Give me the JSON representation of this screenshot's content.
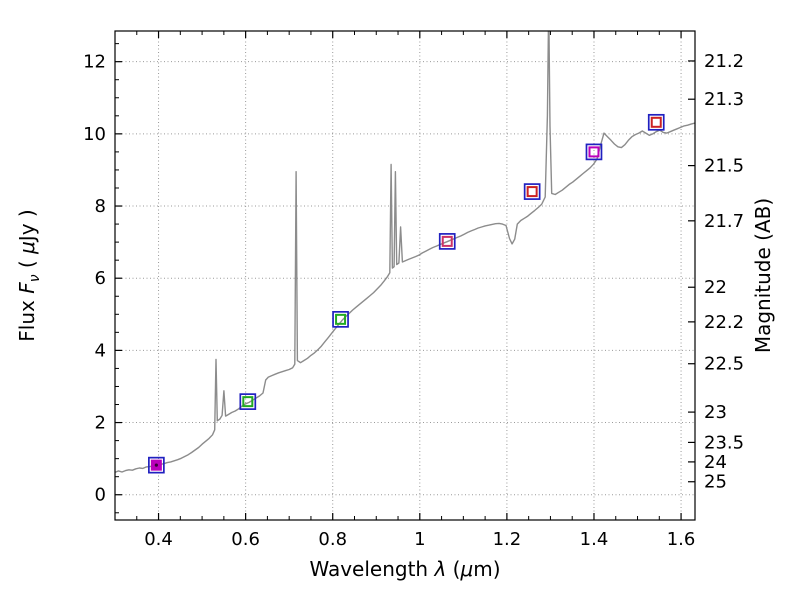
{
  "chart_data": {
    "type": "line",
    "title": "",
    "xlabel_parts": [
      {
        "text": "Wavelength  "
      },
      {
        "text": "λ",
        "italic": true
      },
      {
        "text": " ("
      },
      {
        "text": "μ",
        "italic": true
      },
      {
        "text": "m)"
      }
    ],
    "ylabel_left_parts": [
      {
        "text": "Flux  "
      },
      {
        "text": "F",
        "italic": true
      },
      {
        "text": "ν",
        "italic": true,
        "sub": true
      },
      {
        "text": "  ( "
      },
      {
        "text": "μ",
        "italic": true
      },
      {
        "text": "Jy )"
      }
    ],
    "ylabel_right": "Magnitude (AB)",
    "xlim": [
      0.3,
      1.632
    ],
    "ylim_flux": [
      -0.7,
      12.85
    ],
    "x_major_ticks": [
      0.4,
      0.6,
      0.8,
      1.0,
      1.2,
      1.4,
      1.6
    ],
    "x_tick_labels": [
      "0.4",
      "0.6",
      "0.8",
      "1",
      "1.2",
      "1.4",
      "1.6"
    ],
    "x_minor_step": 0.05,
    "y_major_ticks": [
      0,
      2,
      4,
      6,
      8,
      10,
      12
    ],
    "y_tick_labels": [
      "0",
      "2",
      "4",
      "6",
      "8",
      "10",
      "12"
    ],
    "y_minor_step": 0.5,
    "grid": true,
    "legend": "none",
    "mag_ticks": [
      {
        "label": "21.2",
        "flux": 12.02
      },
      {
        "label": "21.3",
        "flux": 10.96
      },
      {
        "label": "21.5",
        "flux": 9.12
      },
      {
        "label": "21.7",
        "flux": 7.59
      },
      {
        "label": "22",
        "flux": 5.75
      },
      {
        "label": "22.2",
        "flux": 4.79
      },
      {
        "label": "22.5",
        "flux": 3.63
      },
      {
        "label": "23",
        "flux": 2.29
      },
      {
        "label": "23.5",
        "flux": 1.45
      },
      {
        "label": "24",
        "flux": 0.91
      },
      {
        "label": "25",
        "flux": 0.36
      }
    ],
    "colors": {
      "spectrum": "#8c8c8c",
      "grid": "#9a9a9a",
      "frame": "#000000",
      "square_outer": "#2020c0"
    },
    "spectrum_points": [
      [
        0.3,
        0.62
      ],
      [
        0.308,
        0.66
      ],
      [
        0.316,
        0.63
      ],
      [
        0.324,
        0.67
      ],
      [
        0.332,
        0.69
      ],
      [
        0.34,
        0.68
      ],
      [
        0.348,
        0.72
      ],
      [
        0.356,
        0.74
      ],
      [
        0.364,
        0.73
      ],
      [
        0.372,
        0.77
      ],
      [
        0.38,
        0.78
      ],
      [
        0.388,
        0.8
      ],
      [
        0.396,
        0.82
      ],
      [
        0.404,
        0.84
      ],
      [
        0.412,
        0.86
      ],
      [
        0.42,
        0.89
      ],
      [
        0.428,
        0.91
      ],
      [
        0.436,
        0.94
      ],
      [
        0.444,
        0.97
      ],
      [
        0.452,
        1.01
      ],
      [
        0.46,
        1.06
      ],
      [
        0.468,
        1.11
      ],
      [
        0.476,
        1.17
      ],
      [
        0.484,
        1.24
      ],
      [
        0.492,
        1.31
      ],
      [
        0.5,
        1.4
      ],
      [
        0.508,
        1.48
      ],
      [
        0.516,
        1.56
      ],
      [
        0.524,
        1.66
      ],
      [
        0.529,
        1.8
      ],
      [
        0.532,
        3.75
      ],
      [
        0.535,
        2.05
      ],
      [
        0.541,
        2.1
      ],
      [
        0.546,
        2.2
      ],
      [
        0.55,
        2.88
      ],
      [
        0.554,
        2.18
      ],
      [
        0.56,
        2.22
      ],
      [
        0.568,
        2.28
      ],
      [
        0.576,
        2.32
      ],
      [
        0.584,
        2.38
      ],
      [
        0.592,
        2.46
      ],
      [
        0.6,
        2.52
      ],
      [
        0.608,
        2.56
      ],
      [
        0.616,
        2.62
      ],
      [
        0.624,
        2.68
      ],
      [
        0.632,
        2.74
      ],
      [
        0.64,
        2.82
      ],
      [
        0.646,
        3.18
      ],
      [
        0.652,
        3.26
      ],
      [
        0.66,
        3.3
      ],
      [
        0.668,
        3.34
      ],
      [
        0.676,
        3.38
      ],
      [
        0.684,
        3.41
      ],
      [
        0.692,
        3.44
      ],
      [
        0.7,
        3.47
      ],
      [
        0.708,
        3.52
      ],
      [
        0.713,
        3.62
      ],
      [
        0.716,
        8.95
      ],
      [
        0.719,
        3.72
      ],
      [
        0.726,
        3.66
      ],
      [
        0.734,
        3.72
      ],
      [
        0.742,
        3.78
      ],
      [
        0.75,
        3.86
      ],
      [
        0.758,
        3.93
      ],
      [
        0.766,
        4.02
      ],
      [
        0.774,
        4.12
      ],
      [
        0.782,
        4.24
      ],
      [
        0.79,
        4.36
      ],
      [
        0.798,
        4.48
      ],
      [
        0.806,
        4.6
      ],
      [
        0.814,
        4.72
      ],
      [
        0.822,
        4.84
      ],
      [
        0.83,
        4.94
      ],
      [
        0.838,
        5.03
      ],
      [
        0.846,
        5.12
      ],
      [
        0.854,
        5.2
      ],
      [
        0.862,
        5.28
      ],
      [
        0.87,
        5.36
      ],
      [
        0.878,
        5.44
      ],
      [
        0.886,
        5.52
      ],
      [
        0.894,
        5.6
      ],
      [
        0.902,
        5.7
      ],
      [
        0.91,
        5.8
      ],
      [
        0.918,
        5.92
      ],
      [
        0.926,
        6.05
      ],
      [
        0.931,
        6.15
      ],
      [
        0.934,
        9.15
      ],
      [
        0.937,
        6.28
      ],
      [
        0.941,
        6.32
      ],
      [
        0.944,
        8.95
      ],
      [
        0.947,
        6.38
      ],
      [
        0.952,
        6.42
      ],
      [
        0.956,
        7.42
      ],
      [
        0.96,
        6.45
      ],
      [
        0.966,
        6.48
      ],
      [
        0.974,
        6.52
      ],
      [
        0.982,
        6.56
      ],
      [
        0.99,
        6.6
      ],
      [
        0.998,
        6.64
      ],
      [
        1.006,
        6.7
      ],
      [
        1.014,
        6.75
      ],
      [
        1.022,
        6.8
      ],
      [
        1.03,
        6.85
      ],
      [
        1.038,
        6.89
      ],
      [
        1.046,
        6.93
      ],
      [
        1.054,
        6.97
      ],
      [
        1.062,
        7.01
      ],
      [
        1.07,
        7.05
      ],
      [
        1.078,
        7.09
      ],
      [
        1.086,
        7.13
      ],
      [
        1.094,
        7.17
      ],
      [
        1.102,
        7.22
      ],
      [
        1.11,
        7.27
      ],
      [
        1.118,
        7.31
      ],
      [
        1.126,
        7.35
      ],
      [
        1.134,
        7.39
      ],
      [
        1.142,
        7.42
      ],
      [
        1.15,
        7.45
      ],
      [
        1.158,
        7.47
      ],
      [
        1.166,
        7.49
      ],
      [
        1.174,
        7.51
      ],
      [
        1.182,
        7.52
      ],
      [
        1.19,
        7.5
      ],
      [
        1.198,
        7.46
      ],
      [
        1.206,
        7.1
      ],
      [
        1.212,
        6.95
      ],
      [
        1.218,
        7.08
      ],
      [
        1.224,
        7.5
      ],
      [
        1.232,
        7.6
      ],
      [
        1.24,
        7.66
      ],
      [
        1.248,
        7.72
      ],
      [
        1.256,
        7.8
      ],
      [
        1.264,
        7.88
      ],
      [
        1.272,
        7.96
      ],
      [
        1.28,
        8.05
      ],
      [
        1.288,
        8.25
      ],
      [
        1.293,
        10.5
      ],
      [
        1.296,
        13.6
      ],
      [
        1.299,
        10.2
      ],
      [
        1.303,
        8.35
      ],
      [
        1.311,
        8.32
      ],
      [
        1.319,
        8.38
      ],
      [
        1.327,
        8.44
      ],
      [
        1.335,
        8.52
      ],
      [
        1.343,
        8.6
      ],
      [
        1.351,
        8.66
      ],
      [
        1.359,
        8.74
      ],
      [
        1.367,
        8.82
      ],
      [
        1.375,
        8.9
      ],
      [
        1.383,
        8.98
      ],
      [
        1.391,
        9.06
      ],
      [
        1.399,
        9.16
      ],
      [
        1.407,
        9.3
      ],
      [
        1.415,
        9.68
      ],
      [
        1.423,
        10.02
      ],
      [
        1.431,
        9.92
      ],
      [
        1.439,
        9.82
      ],
      [
        1.447,
        9.72
      ],
      [
        1.455,
        9.64
      ],
      [
        1.463,
        9.62
      ],
      [
        1.471,
        9.7
      ],
      [
        1.479,
        9.82
      ],
      [
        1.487,
        9.92
      ],
      [
        1.495,
        9.98
      ],
      [
        1.503,
        10.02
      ],
      [
        1.511,
        10.08
      ],
      [
        1.519,
        10.02
      ],
      [
        1.527,
        9.96
      ],
      [
        1.535,
        10.0
      ],
      [
        1.543,
        10.06
      ],
      [
        1.551,
        10.1
      ],
      [
        1.559,
        10.04
      ],
      [
        1.567,
        10.02
      ],
      [
        1.575,
        10.06
      ],
      [
        1.583,
        10.1
      ],
      [
        1.591,
        10.14
      ],
      [
        1.599,
        10.18
      ],
      [
        1.607,
        10.22
      ],
      [
        1.615,
        10.24
      ],
      [
        1.623,
        10.27
      ],
      [
        1.632,
        10.3
      ]
    ],
    "photometry": [
      {
        "lambda": 0.395,
        "flux": 0.82,
        "inner_color": "#bb00bb",
        "style": "filled"
      },
      {
        "lambda": 0.605,
        "flux": 2.58,
        "inner_color": "#22aa22",
        "style": "open"
      },
      {
        "lambda": 0.818,
        "flux": 4.86,
        "inner_color": "#22aa22",
        "style": "open"
      },
      {
        "lambda": 1.063,
        "flux": 7.02,
        "inner_color": "#cc3366",
        "style": "open"
      },
      {
        "lambda": 1.258,
        "flux": 8.4,
        "inner_color": "#cc2222",
        "style": "open"
      },
      {
        "lambda": 1.4,
        "flux": 9.5,
        "inner_color": "#bb00bb",
        "style": "open"
      },
      {
        "lambda": 1.543,
        "flux": 10.32,
        "inner_color": "#cc2222",
        "style": "open"
      }
    ]
  }
}
